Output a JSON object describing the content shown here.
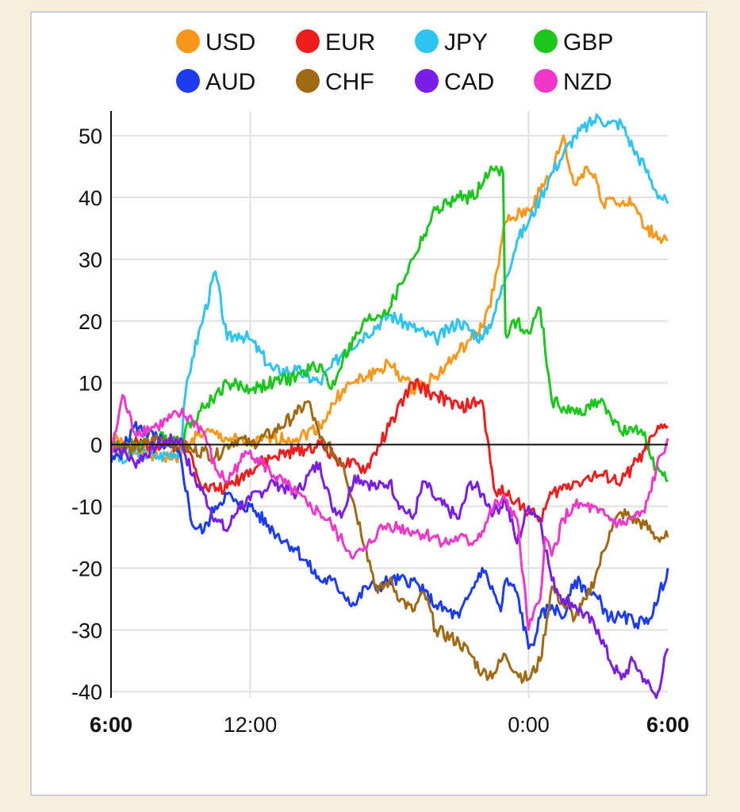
{
  "chart_data": {
    "type": "line",
    "x_ticks": [
      "6:00",
      "12:00",
      "0:00",
      "6:00"
    ],
    "x_ticks_bold": [
      true,
      false,
      false,
      true
    ],
    "y_ticks": [
      "50",
      "40",
      "30",
      "20",
      "10",
      "0",
      "-10",
      "-20",
      "-30",
      "-40"
    ],
    "ylim": [
      -41,
      54
    ],
    "x_range_hours": [
      0,
      24
    ],
    "grid": true,
    "legend_position": "top",
    "series": [
      {
        "name": "USD",
        "color": "#f7981d",
        "x": [
          0,
          1,
          2,
          3,
          3.5,
          4,
          5,
          6,
          7,
          8,
          9,
          10,
          10.5,
          11,
          12,
          13,
          13.5,
          14,
          15,
          15.5,
          16,
          16.5,
          17,
          18,
          18.5,
          19,
          19.5,
          19.8,
          20,
          20.5,
          21,
          21.2,
          21.5,
          22,
          22.5,
          23,
          24
        ],
        "values": [
          1,
          -1,
          -2,
          -2,
          1,
          2,
          1,
          0,
          1,
          1,
          3,
          9,
          10,
          11,
          13,
          9,
          10,
          11,
          15,
          17,
          19,
          25,
          36,
          38,
          41,
          44,
          50,
          44,
          42,
          45,
          42,
          39,
          40,
          39,
          39,
          35,
          33
        ]
      },
      {
        "name": "EUR",
        "color": "#ef1e1e",
        "x": [
          0,
          1,
          2,
          3,
          3.5,
          4,
          5,
          6,
          7,
          8,
          9,
          10,
          11,
          12,
          13,
          14,
          15,
          16,
          16.5,
          17,
          17.5,
          18,
          18.5,
          19,
          20,
          21,
          22,
          23,
          23.5,
          24
        ],
        "values": [
          0,
          0,
          0,
          0,
          -2,
          -7,
          -7,
          -4,
          -2,
          -1,
          0,
          -3,
          -4,
          3,
          10,
          8,
          6,
          7,
          -7,
          -8,
          -9,
          -11,
          -12,
          -8,
          -6,
          -5,
          -6,
          -1,
          2,
          3
        ]
      },
      {
        "name": "JPY",
        "color": "#2fc4ef",
        "x": [
          0,
          0.5,
          1,
          2,
          3,
          3.2,
          3.5,
          4,
          4.5,
          5,
          5.5,
          6,
          7,
          8,
          9,
          10,
          11,
          12,
          13,
          14,
          15,
          16,
          16.5,
          17,
          17.5,
          18,
          18.5,
          19,
          19.5,
          20,
          21,
          21.5,
          22,
          22.5,
          23,
          23.5,
          24
        ],
        "values": [
          0,
          -3,
          -1,
          -2,
          -1,
          8,
          14,
          21,
          28,
          17,
          18,
          17,
          12,
          12,
          10,
          15,
          18,
          21,
          19,
          17,
          20,
          17,
          21,
          27,
          33,
          36,
          40,
          44,
          47,
          50,
          53,
          52,
          52,
          48,
          45,
          41,
          39
        ]
      },
      {
        "name": "GBP",
        "color": "#1dc61d",
        "x": [
          0,
          1,
          2,
          3,
          3.5,
          4,
          4.5,
          5,
          6,
          7,
          8,
          9,
          9.5,
          10,
          11,
          12,
          12.5,
          13,
          13.5,
          14,
          15,
          15.5,
          16,
          16.3,
          16.6,
          16.9,
          17,
          17.5,
          17.8,
          18,
          18.5,
          19,
          20,
          21,
          21.5,
          22,
          22.5,
          23,
          23.5,
          24
        ],
        "values": [
          0,
          0,
          1,
          1,
          4,
          6,
          8,
          10,
          9,
          10,
          11,
          13,
          9,
          14,
          20,
          22,
          26,
          30,
          34,
          38,
          40,
          40,
          42,
          44,
          45,
          44,
          18,
          20,
          18,
          18,
          22,
          7,
          5,
          7,
          5,
          2,
          2,
          2,
          -4,
          -6
        ]
      },
      {
        "name": "AUD",
        "color": "#1d3cef",
        "x": [
          0,
          0.5,
          1,
          2,
          3,
          3.5,
          4,
          4.5,
          5,
          5.5,
          6,
          7,
          8,
          9,
          9.5,
          10,
          10.5,
          11,
          11.5,
          12,
          13,
          13.5,
          14,
          15,
          15.5,
          16,
          16.5,
          16.8,
          17,
          17.5,
          18,
          18.3,
          18.5,
          19,
          19.5,
          20,
          21,
          21.5,
          22,
          23,
          23.5,
          24
        ],
        "values": [
          -3,
          -1,
          3,
          1,
          -2,
          -13,
          -14,
          -10,
          -8,
          -10,
          -10,
          -14,
          -17,
          -22,
          -22,
          -24,
          -26,
          -23,
          -23,
          -22,
          -22,
          -24,
          -26,
          -28,
          -24,
          -20,
          -24,
          -27,
          -22,
          -24,
          -33,
          -31,
          -28,
          -26,
          -28,
          -22,
          -25,
          -28,
          -28,
          -29,
          -26,
          -20
        ]
      },
      {
        "name": "CHF",
        "color": "#a06a14",
        "x": [
          0,
          1,
          2,
          3,
          3.5,
          4,
          4.5,
          5,
          5.5,
          6,
          7,
          8,
          8.5,
          9,
          10,
          10.5,
          11,
          11.5,
          12,
          12.5,
          13,
          13.5,
          14,
          15,
          15.5,
          16,
          16.5,
          17,
          17.5,
          18,
          18.5,
          19,
          19.5,
          20,
          20.5,
          21,
          21.5,
          22,
          23,
          23.5,
          24
        ],
        "values": [
          0,
          -1,
          1,
          0,
          -1,
          -1,
          -2,
          0,
          1,
          0,
          2,
          5,
          7,
          1,
          -3,
          -10,
          -17,
          -24,
          -22,
          -25,
          -27,
          -24,
          -30,
          -32,
          -34,
          -37,
          -37,
          -34,
          -37,
          -38,
          -35,
          -23,
          -26,
          -28,
          -25,
          -20,
          -14,
          -11,
          -13,
          -15,
          -15
        ]
      },
      {
        "name": "CAD",
        "color": "#7a1ee6",
        "x": [
          0,
          0.5,
          1,
          2,
          3,
          3.5,
          4,
          4.5,
          5,
          5.5,
          6,
          7,
          8,
          8.5,
          9,
          9.5,
          10,
          10.5,
          11,
          11.5,
          12,
          12.5,
          13,
          13.5,
          14,
          15,
          15.5,
          16,
          16.5,
          17,
          17.5,
          18,
          18.5,
          19,
          19.5,
          20,
          21,
          21.5,
          22,
          22.5,
          23,
          23.5,
          24
        ],
        "values": [
          0,
          -1,
          -3,
          0,
          1,
          -5,
          -8,
          -12,
          -14,
          -10,
          -9,
          -6,
          -8,
          -5,
          -3,
          -10,
          -11,
          -5,
          -6,
          -7,
          -6,
          -10,
          -12,
          -6,
          -9,
          -12,
          -6,
          -8,
          -11,
          -9,
          -16,
          -10,
          -12,
          -22,
          -25,
          -26,
          -30,
          -35,
          -38,
          -35,
          -38,
          -41,
          -33
        ]
      },
      {
        "name": "NZD",
        "color": "#ef38c9",
        "x": [
          0,
          0.5,
          1,
          2,
          3,
          3.5,
          4,
          4.5,
          5,
          5.5,
          6,
          7,
          8,
          8.5,
          9,
          9.5,
          10,
          10.5,
          11,
          11.5,
          12,
          13,
          14,
          14.5,
          15,
          15.5,
          16,
          16.5,
          17,
          17.5,
          18,
          18.5,
          18.7,
          19,
          19.5,
          20,
          20.5,
          21,
          22,
          23,
          23.5,
          24
        ],
        "values": [
          -2,
          8,
          2,
          3,
          5,
          4,
          2,
          -4,
          -6,
          -3,
          -1,
          -5,
          -8,
          -10,
          -11,
          -13,
          -16,
          -18,
          -17,
          -14,
          -13,
          -14,
          -15,
          -16,
          -15,
          -16,
          -14,
          -10,
          -9,
          -12,
          -30,
          -25,
          -15,
          -18,
          -12,
          -10,
          -10,
          -11,
          -13,
          -11,
          -4,
          1
        ]
      }
    ]
  }
}
